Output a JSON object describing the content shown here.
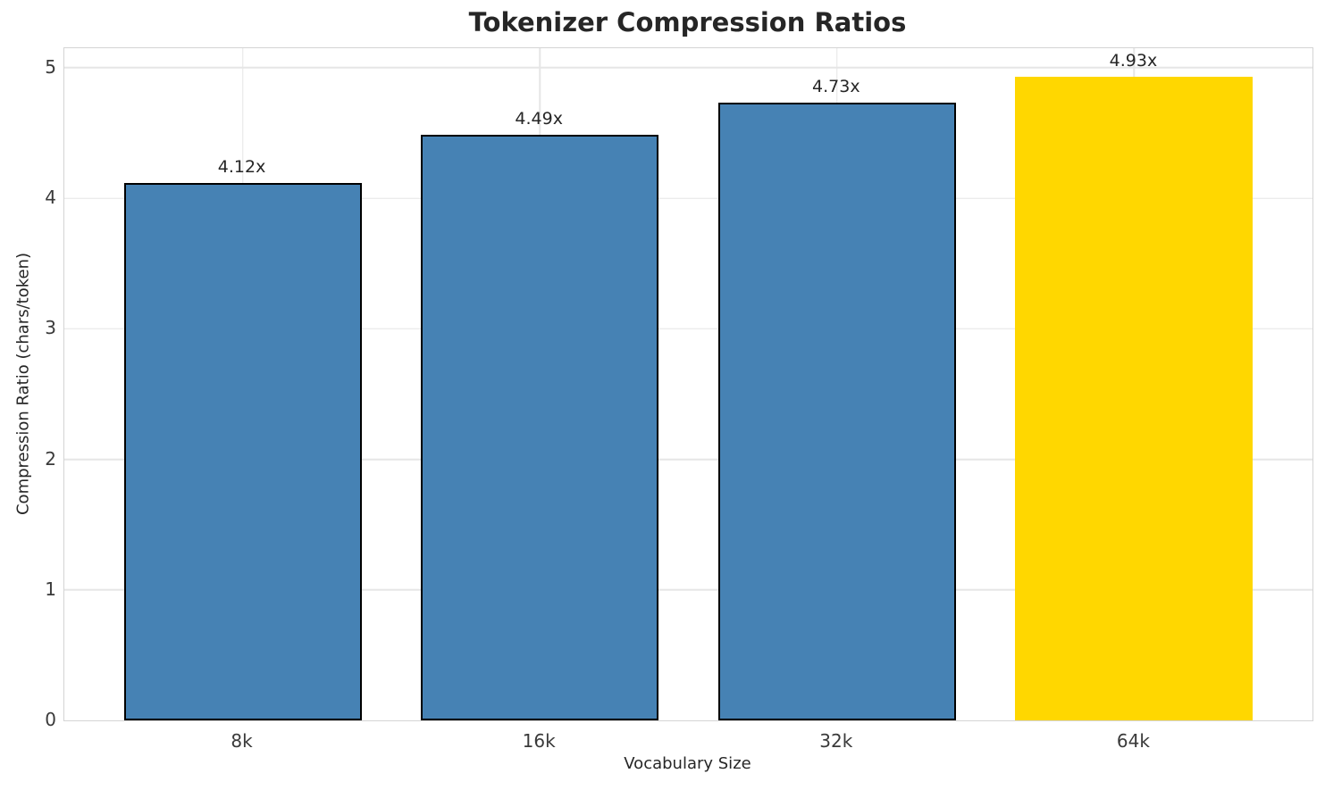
{
  "figure": {
    "title": "Tokenizer Compression Ratios"
  },
  "chart_data": {
    "type": "bar",
    "title": "Tokenizer Compression Ratios",
    "xlabel": "Vocabulary Size",
    "ylabel": "Compression Ratio (chars/token)",
    "categories": [
      "8k",
      "16k",
      "32k",
      "64k"
    ],
    "values": [
      4.12,
      4.49,
      4.73,
      4.93
    ],
    "bar_labels": [
      "4.12x",
      "4.49x",
      "4.73x",
      "4.93x"
    ],
    "bar_colors": [
      "#4682b4",
      "#4682b4",
      "#4682b4",
      "#ffd700"
    ],
    "bar_edge_colors": [
      "#000000",
      "#000000",
      "#000000",
      "#ffd700"
    ],
    "highlight_color": "#ffd700",
    "base_color": "#4682b4",
    "yticks": [
      0,
      1,
      2,
      3,
      4,
      5
    ],
    "ylim": [
      0,
      5.15
    ],
    "xlim": [
      -0.6,
      3.6
    ],
    "bar_width": 0.8,
    "grid": true,
    "grid_color": "#e6e6e6",
    "legend": "none"
  }
}
